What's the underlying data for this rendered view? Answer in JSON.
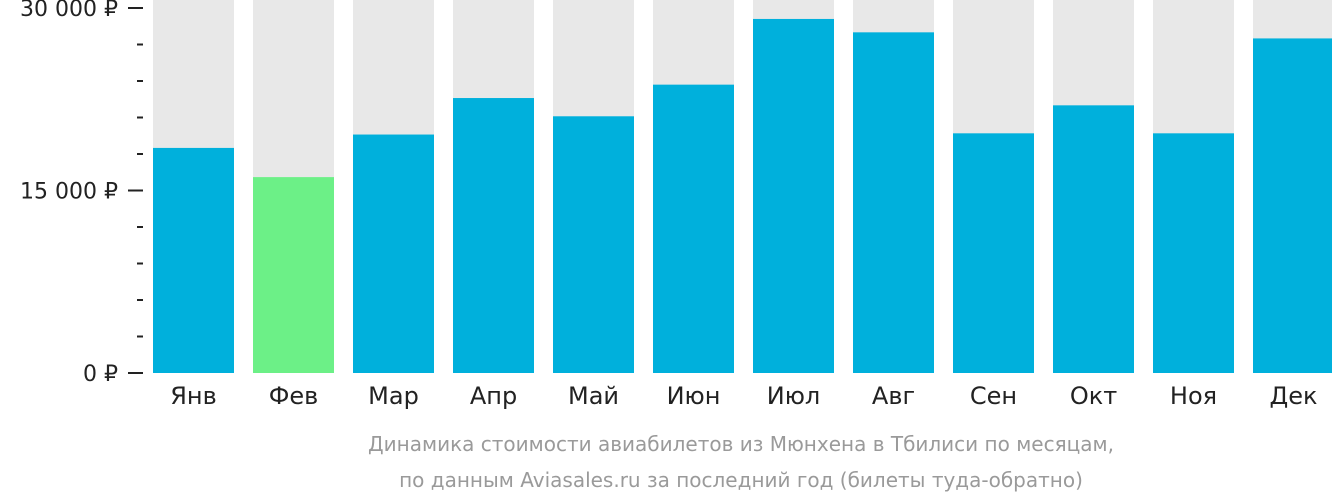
{
  "chart_data": {
    "type": "bar",
    "categories": [
      "Янв",
      "Фев",
      "Мар",
      "Апр",
      "Май",
      "Июн",
      "Июл",
      "Авг",
      "Сен",
      "Окт",
      "Ноя",
      "Дек"
    ],
    "values": [
      18500,
      16100,
      19600,
      22600,
      21100,
      23700,
      29100,
      28000,
      19700,
      22000,
      19700,
      27500
    ],
    "highlight_index": 1,
    "ylim": [
      0,
      30000
    ],
    "yticks": [
      {
        "value": 0,
        "label": "0 ₽"
      },
      {
        "value": 15000,
        "label": "15 000 ₽"
      },
      {
        "value": 30000,
        "label": "30 000 ₽"
      }
    ],
    "minor_tick_step": 3000,
    "caption_lines": [
      "Динамика стоимости авиабилетов из Мюнхена в Тбилиси по месяцам,",
      "по данным Aviasales.ru за последний год (билеты туда-обратно)"
    ],
    "colors": {
      "bar": "#00b0dc",
      "highlight": "#6cf087",
      "background_bar": "#e8e8e8",
      "axis": "#222222",
      "caption": "#9a9a9a"
    }
  }
}
